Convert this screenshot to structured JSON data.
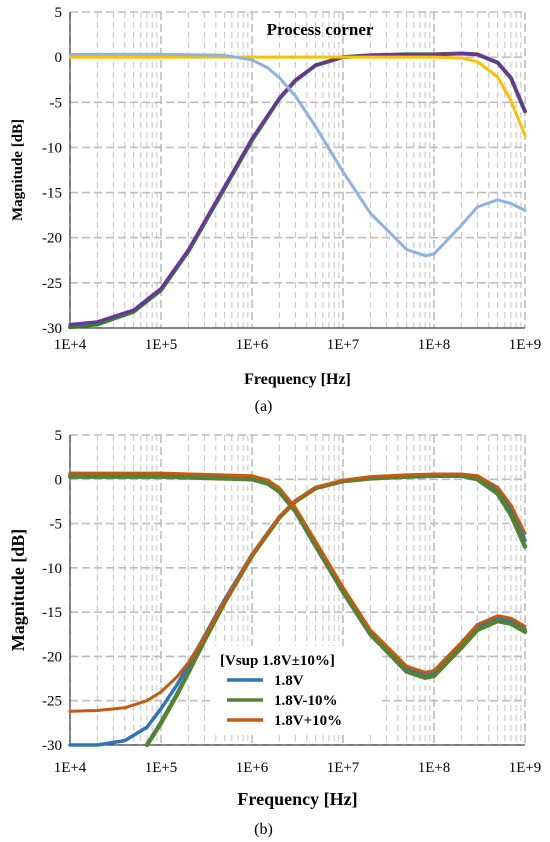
{
  "chart_data": [
    {
      "type": "line",
      "title": "Process corner",
      "caption": "(a)",
      "xlabel": "Frequency [Hz]",
      "ylabel": "Magnitude [dB]",
      "xscale": "log",
      "xlim": [
        10000,
        1000000000
      ],
      "ylim": [
        -30,
        5
      ],
      "xticks": [
        "1E+4",
        "1E+5",
        "1E+6",
        "1E+7",
        "1E+8",
        "1E+9"
      ],
      "yticks": [
        "5",
        "0",
        "-5",
        "-10",
        "-15",
        "-20",
        "-25",
        "-30"
      ],
      "grid": true,
      "legend": null,
      "series": [
        {
          "color": "#2e7d32",
          "width": 4,
          "x": [
            10000,
            20000,
            50000,
            100000,
            200000,
            500000,
            1000000,
            2000000,
            3000000,
            5000000,
            10000000,
            20000000,
            50000000,
            100000000,
            200000000,
            300000000,
            500000000,
            700000000,
            1000000000
          ],
          "y": [
            -29.9,
            -29.6,
            -28.2,
            -25.8,
            -21.5,
            -14.5,
            -9.2,
            -4.6,
            -2.6,
            -0.9,
            0.0,
            0.2,
            0.3,
            0.3,
            0.4,
            0.3,
            -0.6,
            -2.3,
            -6.0
          ]
        },
        {
          "color": "#7030a0",
          "width": 3,
          "x": [
            10000,
            20000,
            50000,
            100000,
            200000,
            500000,
            1000000,
            2000000,
            3000000,
            5000000,
            10000000,
            20000000,
            50000000,
            100000000,
            200000000,
            300000000,
            500000000,
            700000000,
            1000000000
          ],
          "y": [
            -29.6,
            -29.3,
            -28.0,
            -25.6,
            -21.3,
            -14.3,
            -9.0,
            -4.5,
            -2.5,
            -0.9,
            0.0,
            0.2,
            0.3,
            0.3,
            0.4,
            0.3,
            -0.6,
            -2.3,
            -6.0
          ]
        },
        {
          "color": "#ffc000",
          "width": 3,
          "x": [
            10000,
            100000,
            1000000,
            10000000,
            50000000,
            100000000,
            200000000,
            300000000,
            500000000,
            700000000,
            1000000000
          ],
          "y": [
            0.0,
            0.0,
            0.0,
            0.0,
            0.0,
            0.0,
            -0.1,
            -0.5,
            -2.2,
            -4.8,
            -8.7
          ]
        },
        {
          "color": "#8fb3e0",
          "width": 3,
          "x": [
            10000,
            100000,
            500000,
            1000000,
            1500000,
            2000000,
            3000000,
            5000000,
            10000000,
            20000000,
            50000000,
            80000000,
            100000000,
            200000000,
            300000000,
            500000000,
            700000000,
            1000000000
          ],
          "y": [
            0.3,
            0.3,
            0.2,
            -0.3,
            -1.2,
            -2.3,
            -4.3,
            -7.7,
            -12.7,
            -17.3,
            -21.3,
            -22.0,
            -21.8,
            -18.6,
            -16.6,
            -15.8,
            -16.2,
            -17.0
          ]
        }
      ]
    },
    {
      "type": "line",
      "caption": "(b)",
      "xlabel": "Frequency [Hz]",
      "ylabel": "Magnitude [dB]",
      "xscale": "log",
      "xlim": [
        10000,
        1000000000
      ],
      "ylim": [
        -30,
        5
      ],
      "xticks": [
        "1E+4",
        "1E+5",
        "1E+6",
        "1E+7",
        "1E+8",
        "1E+9"
      ],
      "yticks": [
        "5",
        "0",
        "-5",
        "-10",
        "-15",
        "-20",
        "-25",
        "-30"
      ],
      "grid": true,
      "legend": {
        "title": "[Vsup 1.8V±10%]",
        "placement": "lower-left",
        "entries": [
          {
            "name": "1.8V",
            "color": "#2e75b6"
          },
          {
            "name": "1.8V-10%",
            "color": "#548235"
          },
          {
            "name": "1.8V+10%",
            "color": "#c55a11"
          }
        ]
      },
      "series": [
        {
          "name": "1.8V",
          "color": "#2e75b6",
          "width": 3.5,
          "x": [
            10000,
            20000,
            40000,
            70000,
            100000,
            150000,
            200000,
            300000,
            500000,
            1000000,
            2000000,
            3000000,
            5000000,
            10000000,
            20000000,
            50000000,
            100000000,
            200000000,
            300000000,
            500000000,
            700000000,
            1000000000
          ],
          "y": [
            -30.0,
            -30.0,
            -29.5,
            -28.0,
            -25.9,
            -23.2,
            -21.0,
            -17.7,
            -13.6,
            -8.5,
            -4.3,
            -2.5,
            -1.0,
            -0.2,
            0.2,
            0.4,
            0.5,
            0.5,
            0.2,
            -1.2,
            -3.4,
            -6.9
          ]
        },
        {
          "name": "1.8V",
          "color": "#2e75b6",
          "width": 3.5,
          "x": [
            10000,
            100000,
            1000000,
            1500000,
            2000000,
            3000000,
            5000000,
            10000000,
            20000000,
            50000000,
            80000000,
            100000000,
            200000000,
            300000000,
            500000000,
            700000000,
            1000000000
          ],
          "y": [
            0.5,
            0.5,
            0.2,
            -0.3,
            -1.2,
            -3.4,
            -7.2,
            -12.4,
            -17.2,
            -21.3,
            -22.0,
            -21.8,
            -18.6,
            -16.6,
            -15.7,
            -16.0,
            -16.9
          ]
        },
        {
          "name": "1.8V-10%",
          "color": "#548235",
          "width": 4.5,
          "x": [
            70000,
            100000,
            150000,
            200000,
            300000,
            500000,
            1000000,
            2000000,
            3000000,
            5000000,
            10000000,
            20000000,
            50000000,
            100000000,
            200000000,
            300000000,
            500000000,
            700000000,
            1000000000
          ],
          "y": [
            -30.0,
            -27.5,
            -24.3,
            -21.8,
            -18.2,
            -13.9,
            -8.6,
            -4.3,
            -2.5,
            -1.0,
            -0.2,
            0.1,
            0.3,
            0.4,
            0.4,
            0.0,
            -1.6,
            -4.0,
            -7.6
          ]
        },
        {
          "name": "1.8V-10%",
          "color": "#548235",
          "width": 4.5,
          "x": [
            10000,
            100000,
            1000000,
            1500000,
            2000000,
            3000000,
            5000000,
            10000000,
            20000000,
            50000000,
            80000000,
            100000000,
            200000000,
            300000000,
            500000000,
            700000000,
            1000000000
          ],
          "y": [
            0.3,
            0.3,
            0.0,
            -0.5,
            -1.4,
            -3.6,
            -7.5,
            -12.7,
            -17.5,
            -21.7,
            -22.4,
            -22.2,
            -19.0,
            -17.0,
            -16.0,
            -16.3,
            -17.2
          ]
        },
        {
          "name": "1.8V+10%",
          "color": "#c55a11",
          "width": 3,
          "x": [
            10000,
            20000,
            40000,
            70000,
            100000,
            150000,
            200000,
            300000,
            500000,
            1000000,
            2000000,
            3000000,
            5000000,
            10000000,
            20000000,
            50000000,
            100000000,
            200000000,
            300000000,
            500000000,
            700000000,
            1000000000
          ],
          "y": [
            -26.2,
            -26.1,
            -25.8,
            -25.0,
            -24.0,
            -22.3,
            -20.7,
            -17.8,
            -13.7,
            -8.5,
            -4.2,
            -2.4,
            -0.9,
            -0.1,
            0.3,
            0.5,
            0.6,
            0.6,
            0.4,
            -0.9,
            -2.9,
            -6.1
          ]
        },
        {
          "name": "1.8V+10%",
          "color": "#c55a11",
          "width": 3,
          "x": [
            10000,
            100000,
            1000000,
            1500000,
            2000000,
            3000000,
            5000000,
            10000000,
            20000000,
            50000000,
            80000000,
            100000000,
            200000000,
            300000000,
            500000000,
            700000000,
            1000000000
          ],
          "y": [
            0.7,
            0.7,
            0.4,
            -0.1,
            -1.0,
            -3.2,
            -7.0,
            -12.2,
            -17.0,
            -21.1,
            -21.8,
            -21.6,
            -18.4,
            -16.4,
            -15.4,
            -15.7,
            -16.6
          ]
        }
      ]
    }
  ]
}
